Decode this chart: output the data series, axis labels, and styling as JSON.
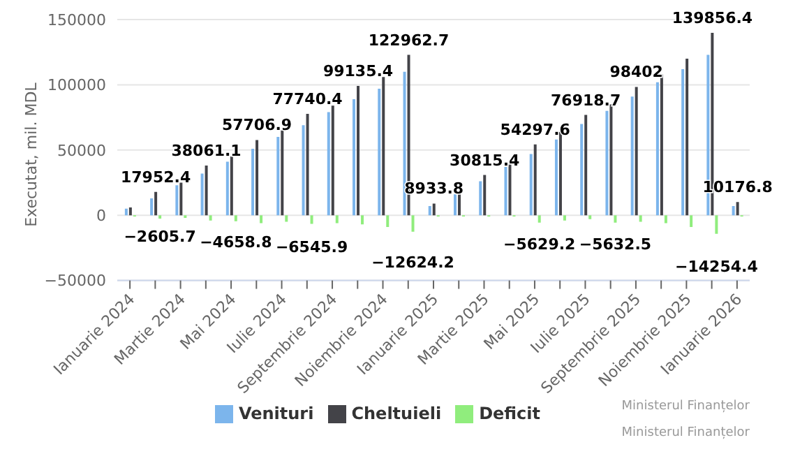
{
  "chart_data": {
    "type": "bar",
    "ylabel": "Executat, mil. MDL",
    "categories": [
      "Ianuarie 2024",
      null,
      "Martie 2024",
      null,
      "Mai 2024",
      null,
      "Iulie 2024",
      null,
      "Septembrie 2024",
      null,
      "Noiembrie 2024",
      null,
      "Ianuarie 2025",
      null,
      "Martie 2025",
      null,
      "Mai 2025",
      null,
      "Iulie 2025",
      null,
      "Septembrie 2025",
      null,
      "Noiembrie 2025",
      null,
      "Ianuarie 2026"
    ],
    "series": [
      {
        "name": "Venituri",
        "color": "#7cb5ec",
        "values": [
          5000,
          13000,
          23000,
          32000,
          41000,
          51000,
          60000,
          69000,
          79000,
          89000,
          97000,
          110000,
          7000,
          16000,
          26000,
          37000,
          47000,
          58000,
          70000,
          80000,
          91000,
          102000,
          112000,
          123000,
          7000
        ]
      },
      {
        "name": "Cheltuieli",
        "color": "#434348",
        "values": [
          6000,
          17952.4,
          25000,
          38061.1,
          45000,
          57706.9,
          65000,
          77740.4,
          84000,
          99135.4,
          106000,
          122962.7,
          8933.8,
          17000,
          30815.4,
          39000,
          54297.6,
          64000,
          76918.7,
          85000,
          98402,
          108000,
          120000,
          139856.4,
          10176.8
        ],
        "value_labels": [
          null,
          "17952.4",
          null,
          "38061.1",
          null,
          "57706.9",
          null,
          "77740.4",
          null,
          "99135.4",
          null,
          "122962.7",
          "8933.8",
          null,
          "30815.4",
          null,
          "54297.6",
          null,
          "76918.7",
          null,
          "98402",
          null,
          null,
          "139856.4",
          "10176.8"
        ]
      },
      {
        "name": "Deficit",
        "color": "#90ed7d",
        "values": [
          -1000,
          -2605.7,
          -2000,
          -4000,
          -4658.8,
          -6000,
          -5000,
          -6545.9,
          -6000,
          -7000,
          -9000,
          -12624.2,
          -1000,
          -1000,
          -1000,
          -1000,
          -5629.2,
          -4000,
          -3000,
          -5632.5,
          -5000,
          -6000,
          -9000,
          -14254.4,
          -1000
        ],
        "value_labels": [
          null,
          "−2605.7",
          null,
          null,
          "−4658.8",
          null,
          null,
          "−6545.9",
          null,
          null,
          null,
          "−12624.2",
          null,
          null,
          null,
          null,
          "−5629.2",
          null,
          null,
          "−5632.5",
          null,
          null,
          null,
          "−14254.4",
          null
        ]
      }
    ],
    "ylim": [
      -50000,
      150000
    ],
    "yticks": [
      -50000,
      0,
      50000,
      100000,
      150000
    ],
    "grid": "y",
    "legend": "bottom",
    "annotations": [
      "Ministerul Finanțelor",
      "Ministerul Finanțelor"
    ]
  }
}
